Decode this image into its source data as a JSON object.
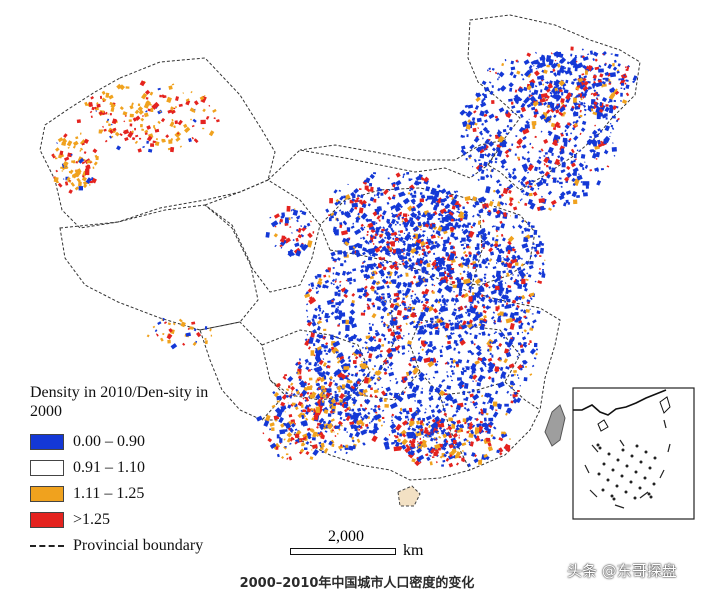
{
  "legend": {
    "title": "Density in 2010/Den-sity in 2000",
    "items": [
      {
        "label": "0.00 – 0.90",
        "color": "#1438d6"
      },
      {
        "label": "0.91 – 1.10",
        "color": "#ffffff"
      },
      {
        "label": "1.11 – 1.25",
        "color": "#f0a21e"
      },
      {
        "label": ">1.25",
        "color": "#e4231f"
      }
    ],
    "boundary_label": "Provincial boundary"
  },
  "scale": {
    "value": "2,000",
    "unit": "km"
  },
  "caption": "2000–2010年中国城市人口密度的变化",
  "watermark": "头条 @东哥探盘"
}
